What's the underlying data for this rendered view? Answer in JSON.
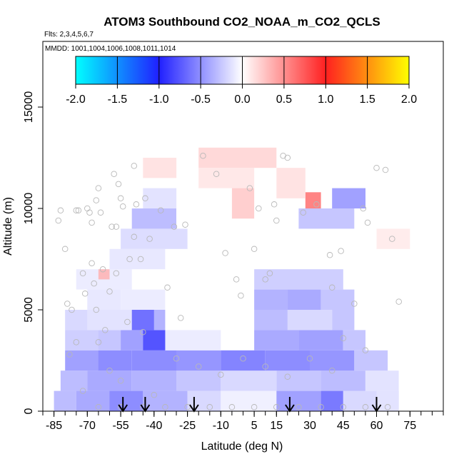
{
  "chart_data": {
    "type": "heatmap",
    "title": "ATOM3 Southbound CO2_NOAA_m_CO2_QCLS",
    "flights_note": "Flts: 2,3,4,5,6,7",
    "dates_note": "MMDD: 1001,1004,1006,1008,1011,1014",
    "xlabel": "Latitude (deg N)",
    "ylabel": "Altitude (m)",
    "xlim": [
      -90,
      90
    ],
    "ylim": [
      0,
      17500
    ],
    "x_tick_labels": [
      "-85",
      "-70",
      "-55",
      "-40",
      "-25",
      "-10",
      "5",
      "15",
      "30",
      "45",
      "60",
      "75"
    ],
    "x_tick_values": [
      -85,
      -70,
      -55,
      -40,
      -25,
      -10,
      5,
      15,
      30,
      45,
      60,
      75
    ],
    "x_minor_step": 5,
    "y_tick_labels": [
      "0",
      "5000",
      "10000",
      "15000"
    ],
    "y_tick_values": [
      0,
      5000,
      10000,
      15000
    ],
    "colorbar": {
      "min": -2.0,
      "max": 2.0,
      "tick_labels": [
        "-2.0",
        "-1.5",
        "-1.0",
        "-0.5",
        "0.0",
        "0.5",
        "1.0",
        "1.5",
        "2.0"
      ],
      "tick_values": [
        -2.0,
        -1.5,
        -1.0,
        -0.5,
        0.0,
        0.5,
        1.0,
        1.5,
        2.0
      ],
      "stops": [
        {
          "v": -2.0,
          "c": "#00ffff"
        },
        {
          "v": -1.0,
          "c": "#2020ff"
        },
        {
          "v": 0.0,
          "c": "#ffffff"
        },
        {
          "v": 1.0,
          "c": "#ff2020"
        },
        {
          "v": 2.0,
          "c": "#ffff00"
        }
      ]
    },
    "cells": [
      {
        "lat": [
          -85,
          -75
        ],
        "alt": [
          0,
          1000
        ],
        "v": -0.35
      },
      {
        "lat": [
          -75,
          -60
        ],
        "alt": [
          0,
          1000
        ],
        "v": -0.45
      },
      {
        "lat": [
          -60,
          -45
        ],
        "alt": [
          0,
          1000
        ],
        "v": -0.6
      },
      {
        "lat": [
          -45,
          -25
        ],
        "alt": [
          0,
          1000
        ],
        "v": -0.4
      },
      {
        "lat": [
          -25,
          -10
        ],
        "alt": [
          0,
          1000
        ],
        "v": -0.2
      },
      {
        "lat": [
          -10,
          15
        ],
        "alt": [
          0,
          1000
        ],
        "v": -0.08
      },
      {
        "lat": [
          15,
          35
        ],
        "alt": [
          0,
          1000
        ],
        "v": -0.5
      },
      {
        "lat": [
          35,
          45
        ],
        "alt": [
          0,
          1000
        ],
        "v": -0.7
      },
      {
        "lat": [
          45,
          60
        ],
        "alt": [
          0,
          1000
        ],
        "v": -0.2
      },
      {
        "lat": [
          60,
          70
        ],
        "alt": [
          0,
          1000
        ],
        "v": -0.15
      },
      {
        "lat": [
          -82,
          -70
        ],
        "alt": [
          1000,
          2000
        ],
        "v": -0.35
      },
      {
        "lat": [
          -70,
          -50
        ],
        "alt": [
          1000,
          2000
        ],
        "v": -0.45
      },
      {
        "lat": [
          -50,
          -30
        ],
        "alt": [
          1000,
          2000
        ],
        "v": -0.4
      },
      {
        "lat": [
          -30,
          -10
        ],
        "alt": [
          1000,
          2000
        ],
        "v": -0.3
      },
      {
        "lat": [
          -10,
          15
        ],
        "alt": [
          1000,
          2000
        ],
        "v": -0.2
      },
      {
        "lat": [
          15,
          35
        ],
        "alt": [
          1000,
          2000
        ],
        "v": -0.3
      },
      {
        "lat": [
          35,
          55
        ],
        "alt": [
          1000,
          2000
        ],
        "v": -0.35
      },
      {
        "lat": [
          55,
          70
        ],
        "alt": [
          1000,
          2000
        ],
        "v": -0.15
      },
      {
        "lat": [
          -80,
          -65
        ],
        "alt": [
          2000,
          3000
        ],
        "v": -0.5
      },
      {
        "lat": [
          -65,
          -50
        ],
        "alt": [
          2000,
          3000
        ],
        "v": -0.6
      },
      {
        "lat": [
          -50,
          -30
        ],
        "alt": [
          2000,
          3000
        ],
        "v": -0.6
      },
      {
        "lat": [
          -30,
          -10
        ],
        "alt": [
          2000,
          3000
        ],
        "v": -0.55
      },
      {
        "lat": [
          -10,
          10
        ],
        "alt": [
          2000,
          3000
        ],
        "v": -0.65
      },
      {
        "lat": [
          10,
          30
        ],
        "alt": [
          2000,
          3000
        ],
        "v": -0.6
      },
      {
        "lat": [
          30,
          50
        ],
        "alt": [
          2000,
          3000
        ],
        "v": -0.55
      },
      {
        "lat": [
          50,
          65
        ],
        "alt": [
          2000,
          3000
        ],
        "v": -0.3
      },
      {
        "lat": [
          -80,
          -65
        ],
        "alt": [
          3000,
          4000
        ],
        "v": -0.25
      },
      {
        "lat": [
          -65,
          -55
        ],
        "alt": [
          3000,
          4000
        ],
        "v": -0.3
      },
      {
        "lat": [
          -55,
          -45
        ],
        "alt": [
          3000,
          4000
        ],
        "v": -0.5
      },
      {
        "lat": [
          -45,
          -35
        ],
        "alt": [
          3000,
          4000
        ],
        "v": -0.9
      },
      {
        "lat": [
          -35,
          -10
        ],
        "alt": [
          3000,
          4000
        ],
        "v": -0.1
      },
      {
        "lat": [
          5,
          25
        ],
        "alt": [
          3000,
          4000
        ],
        "v": -0.45
      },
      {
        "lat": [
          25,
          45
        ],
        "alt": [
          3000,
          4000
        ],
        "v": -0.5
      },
      {
        "lat": [
          45,
          55
        ],
        "alt": [
          3000,
          4000
        ],
        "v": -0.3
      },
      {
        "lat": [
          -80,
          -70
        ],
        "alt": [
          4000,
          5000
        ],
        "v": -0.2
      },
      {
        "lat": [
          -70,
          -50
        ],
        "alt": [
          4000,
          5000
        ],
        "v": -0.15
      },
      {
        "lat": [
          -50,
          -40
        ],
        "alt": [
          4000,
          5000
        ],
        "v": -0.75
      },
      {
        "lat": [
          -40,
          -35
        ],
        "alt": [
          4000,
          5000
        ],
        "v": -0.4
      },
      {
        "lat": [
          5,
          20
        ],
        "alt": [
          4000,
          5000
        ],
        "v": -0.35
      },
      {
        "lat": [
          20,
          40
        ],
        "alt": [
          4000,
          5000
        ],
        "v": -0.2
      },
      {
        "lat": [
          40,
          50
        ],
        "alt": [
          4000,
          5000
        ],
        "v": -0.3
      },
      {
        "lat": [
          5,
          20
        ],
        "alt": [
          5000,
          6000
        ],
        "v": -0.4
      },
      {
        "lat": [
          20,
          35
        ],
        "alt": [
          5000,
          6000
        ],
        "v": -0.45
      },
      {
        "lat": [
          35,
          50
        ],
        "alt": [
          5000,
          6000
        ],
        "v": -0.3
      },
      {
        "lat": [
          -70,
          -55
        ],
        "alt": [
          5000,
          6000
        ],
        "v": -0.12
      },
      {
        "lat": [
          -55,
          -35
        ],
        "alt": [
          5000,
          6000
        ],
        "v": -0.1
      },
      {
        "lat": [
          5,
          45
        ],
        "alt": [
          6000,
          7000
        ],
        "v": -0.25
      },
      {
        "lat": [
          -75,
          -50
        ],
        "alt": [
          6000,
          7000
        ],
        "v": -0.1
      },
      {
        "lat": [
          -60,
          -35
        ],
        "alt": [
          7000,
          8000
        ],
        "v": -0.12
      },
      {
        "lat": [
          -55,
          -25
        ],
        "alt": [
          8000,
          9000
        ],
        "v": -0.18
      },
      {
        "lat": [
          -50,
          -30
        ],
        "alt": [
          9000,
          10000
        ],
        "v": -0.35
      },
      {
        "lat": [
          25,
          50
        ],
        "alt": [
          9000,
          10000
        ],
        "v": -0.3
      },
      {
        "lat": [
          40,
          55
        ],
        "alt": [
          10000,
          11000
        ],
        "v": -0.5
      },
      {
        "lat": [
          -45,
          -30
        ],
        "alt": [
          10000,
          11000
        ],
        "v": -0.15
      },
      {
        "lat": [
          -5,
          5
        ],
        "alt": [
          9500,
          11000
        ],
        "v": 0.25
      },
      {
        "lat": [
          -20,
          5
        ],
        "alt": [
          11000,
          12000
        ],
        "v": 0.12
      },
      {
        "lat": [
          -20,
          15
        ],
        "alt": [
          12000,
          13000
        ],
        "v": 0.2
      },
      {
        "lat": [
          -45,
          -30
        ],
        "alt": [
          11500,
          12500
        ],
        "v": 0.15
      },
      {
        "lat": [
          28,
          35
        ],
        "alt": [
          10000,
          10800
        ],
        "v": 0.65
      },
      {
        "lat": [
          15,
          28
        ],
        "alt": [
          10500,
          12000
        ],
        "v": 0.15
      },
      {
        "lat": [
          -65,
          -60
        ],
        "alt": [
          6500,
          7000
        ],
        "v": 0.35
      },
      {
        "lat": [
          60,
          75
        ],
        "alt": [
          8000,
          9000
        ],
        "v": 0.1
      }
    ],
    "points": [
      [
        -83,
        9400
      ],
      [
        -82,
        9900
      ],
      [
        -80,
        8000
      ],
      [
        -79,
        5300
      ],
      [
        -77,
        5000
      ],
      [
        -75,
        9900
      ],
      [
        -74,
        9900
      ],
      [
        -72,
        6800
      ],
      [
        -71,
        5800
      ],
      [
        -70,
        10000
      ],
      [
        -69,
        9800
      ],
      [
        -68,
        9300
      ],
      [
        -68,
        7300
      ],
      [
        -67,
        6300
      ],
      [
        -66,
        5000
      ],
      [
        -66,
        10400
      ],
      [
        -65,
        11000
      ],
      [
        -65,
        3400
      ],
      [
        -64,
        9800
      ],
      [
        -63,
        7000
      ],
      [
        -62,
        4000
      ],
      [
        -60,
        5900
      ],
      [
        -59,
        9100
      ],
      [
        -58,
        11700
      ],
      [
        -57,
        9100
      ],
      [
        -57,
        6800
      ],
      [
        -56,
        11200
      ],
      [
        -55,
        10500
      ],
      [
        -54,
        10100
      ],
      [
        -52,
        4400
      ],
      [
        -51,
        7500
      ],
      [
        -49,
        12100
      ],
      [
        -49,
        8600
      ],
      [
        -48,
        10200
      ],
      [
        -46,
        7500
      ],
      [
        -44,
        10500
      ],
      [
        -42,
        8500
      ],
      [
        -37,
        9900
      ],
      [
        -34,
        6100
      ],
      [
        -31,
        9100
      ],
      [
        -28,
        4600
      ],
      [
        -26,
        9200
      ],
      [
        -18,
        12600
      ],
      [
        -12,
        11700
      ],
      [
        -8,
        7800
      ],
      [
        -3,
        6500
      ],
      [
        -1,
        5700
      ],
      [
        3,
        11000
      ],
      [
        5,
        8000
      ],
      [
        7,
        10000
      ],
      [
        10,
        6500
      ],
      [
        12,
        6800
      ],
      [
        14,
        10200
      ],
      [
        15,
        9400
      ],
      [
        18,
        12600
      ],
      [
        20,
        12500
      ],
      [
        27,
        9800
      ],
      [
        33,
        10200
      ],
      [
        39,
        7700
      ],
      [
        40,
        6100
      ],
      [
        44,
        7900
      ],
      [
        50,
        5300
      ],
      [
        54,
        10000
      ],
      [
        56,
        9300
      ],
      [
        60,
        12000
      ],
      [
        64,
        11900
      ],
      [
        67,
        8500
      ],
      [
        70,
        5400
      ],
      [
        -60,
        2000
      ],
      [
        -55,
        1500
      ],
      [
        -45,
        3900
      ],
      [
        -40,
        800
      ],
      [
        -30,
        2600
      ],
      [
        -20,
        2200
      ],
      [
        -10,
        1800
      ],
      [
        0,
        2600
      ],
      [
        10,
        2200
      ],
      [
        20,
        1700
      ],
      [
        30,
        2600
      ],
      [
        40,
        2000
      ],
      [
        45,
        3600
      ],
      [
        55,
        3000
      ],
      [
        -78,
        2800
      ],
      [
        -75,
        3400
      ],
      [
        -72,
        1000
      ],
      [
        -65,
        200
      ],
      [
        -55,
        200
      ],
      [
        -45,
        200
      ],
      [
        -35,
        200
      ],
      [
        -25,
        200
      ],
      [
        -15,
        200
      ],
      [
        -5,
        200
      ],
      [
        5,
        200
      ],
      [
        15,
        200
      ],
      [
        25,
        200
      ],
      [
        35,
        200
      ],
      [
        45,
        200
      ],
      [
        55,
        200
      ],
      [
        65,
        200
      ]
    ],
    "arrow_latitudes": [
      -54,
      -44,
      -22,
      21,
      60
    ]
  }
}
